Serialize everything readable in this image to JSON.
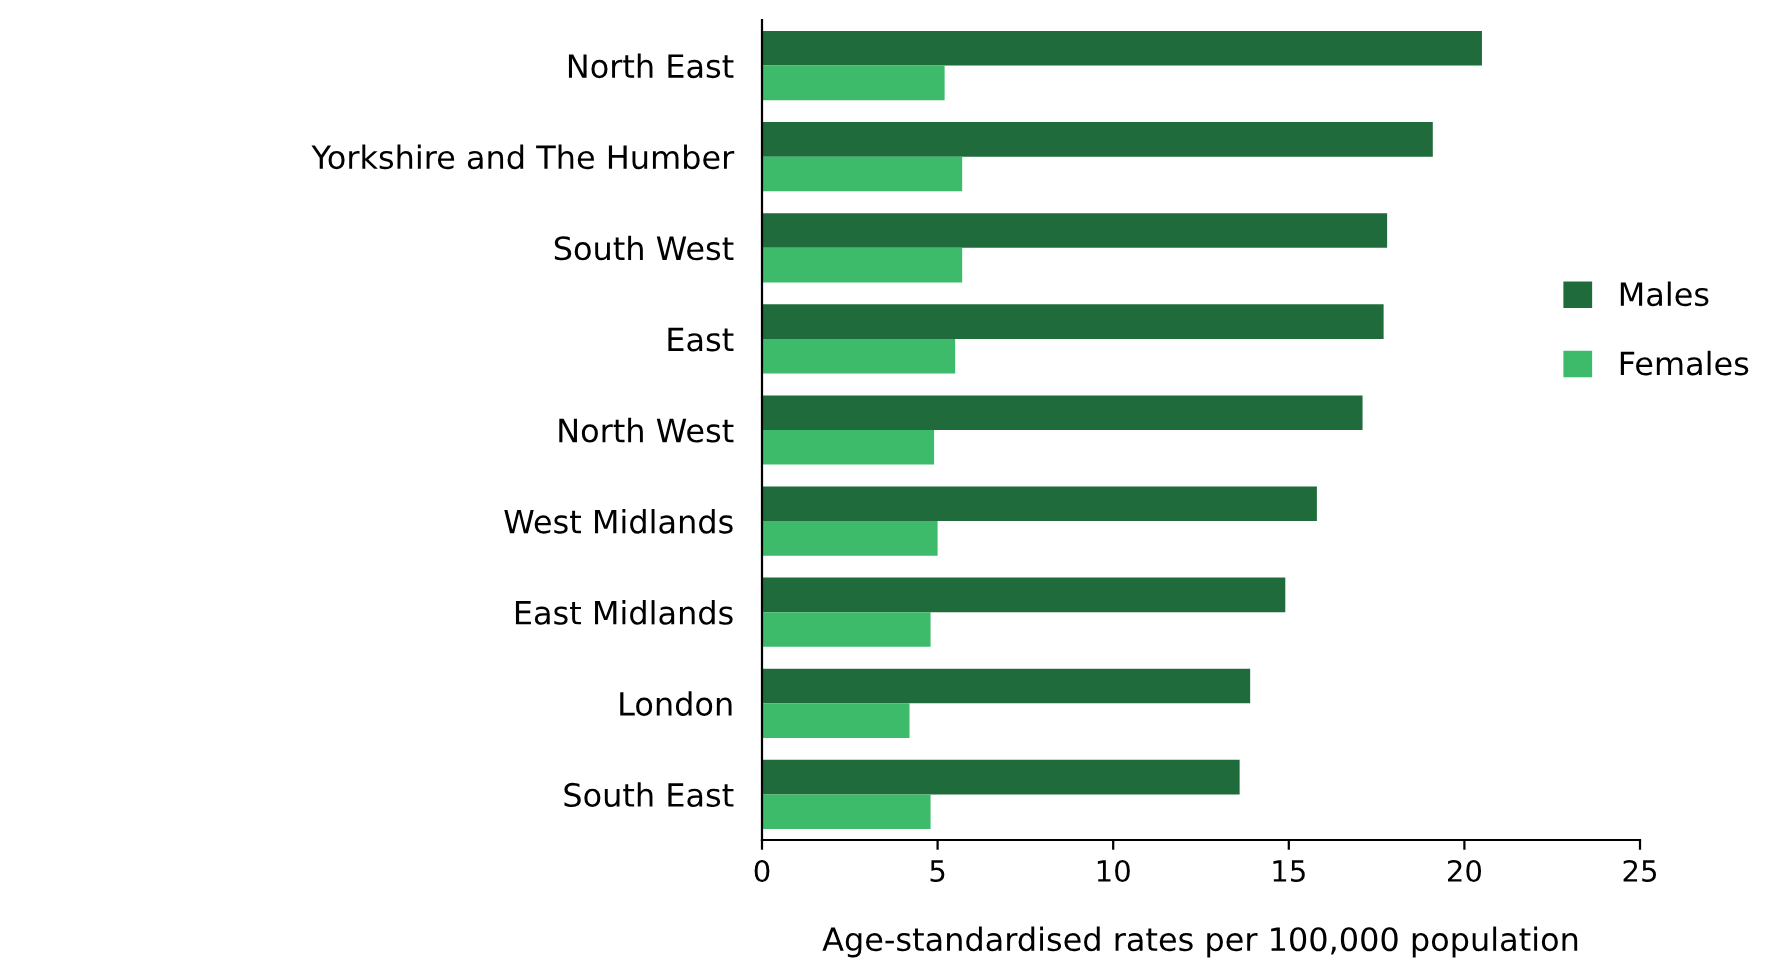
{
  "chart_data": {
    "type": "bar",
    "orientation": "horizontal",
    "xlabel": "Age-standardised rates per 100,000 population",
    "categories": [
      "North East",
      "Yorkshire and The Humber",
      "South West",
      "East",
      "North West",
      "West Midlands",
      "East Midlands",
      "London",
      "South East"
    ],
    "series": [
      {
        "name": "Males",
        "color": "#1f6b3b",
        "values": [
          20.5,
          19.1,
          17.8,
          17.7,
          17.1,
          15.8,
          14.9,
          13.9,
          13.6
        ]
      },
      {
        "name": "Females",
        "color": "#3dbb6a",
        "values": [
          5.2,
          5.7,
          5.7,
          5.5,
          4.9,
          5.0,
          4.8,
          4.2,
          4.8
        ]
      }
    ],
    "xlim": [
      0,
      25
    ],
    "xticks": [
      0,
      5,
      10,
      15,
      20,
      25
    ],
    "grid": false,
    "legend": "right"
  }
}
